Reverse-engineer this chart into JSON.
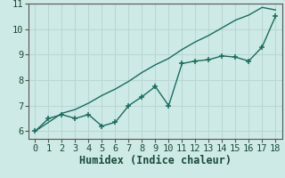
{
  "xlabel": "Humidex (Indice chaleur)",
  "bg_color": "#ceeae6",
  "line_color": "#1a6b5e",
  "grid_color": "#b8d8d4",
  "x_data": [
    0,
    1,
    2,
    3,
    4,
    5,
    6,
    7,
    8,
    9,
    10,
    11,
    12,
    13,
    14,
    15,
    16,
    17,
    18
  ],
  "y_jagged": [
    6.0,
    6.5,
    6.65,
    6.5,
    6.65,
    6.2,
    6.35,
    7.0,
    7.35,
    7.75,
    7.0,
    8.65,
    8.75,
    8.8,
    8.95,
    8.9,
    8.75,
    9.3,
    10.5
  ],
  "y_straight": [
    6.0,
    6.35,
    6.7,
    6.85,
    7.1,
    7.4,
    7.65,
    7.95,
    8.3,
    8.6,
    8.85,
    9.2,
    9.5,
    9.75,
    10.05,
    10.35,
    10.55,
    10.85,
    10.75
  ],
  "xlim": [
    -0.5,
    18.5
  ],
  "ylim": [
    5.7,
    11.0
  ],
  "yticks": [
    6,
    7,
    8,
    9,
    10,
    11
  ],
  "xticks": [
    0,
    1,
    2,
    3,
    4,
    5,
    6,
    7,
    8,
    9,
    10,
    11,
    12,
    13,
    14,
    15,
    16,
    17,
    18
  ],
  "tick_fontsize": 7.5,
  "xlabel_fontsize": 8.5
}
